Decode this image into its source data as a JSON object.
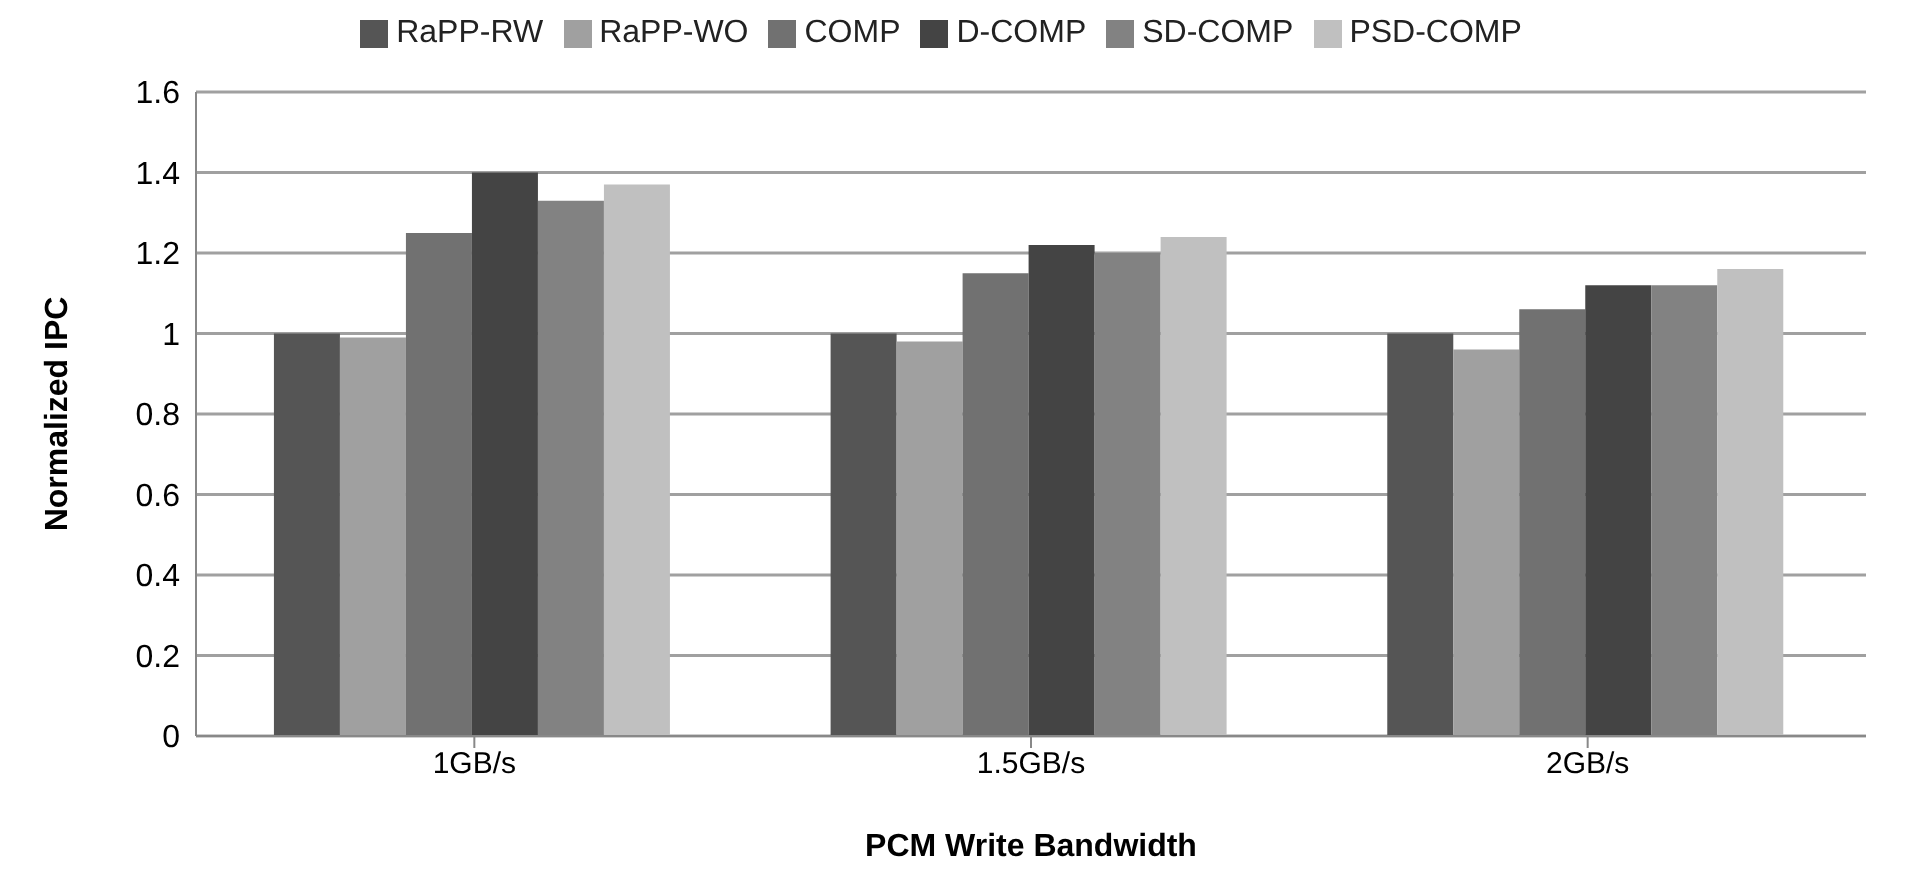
{
  "chart_data": {
    "type": "bar",
    "xlabel": "PCM Write Bandwidth",
    "ylabel": "Normalized IPC",
    "categories": [
      "1GB/s",
      "1.5GB/s",
      "2GB/s"
    ],
    "series": [
      {
        "name": "RaPP-RW",
        "color": "#555555",
        "values": [
          1.0,
          1.0,
          1.0
        ]
      },
      {
        "name": "RaPP-WO",
        "color": "#a0a0a0",
        "values": [
          0.99,
          0.98,
          0.96
        ]
      },
      {
        "name": "COMP",
        "color": "#717171",
        "values": [
          1.25,
          1.15,
          1.06
        ]
      },
      {
        "name": "D-COMP",
        "color": "#444444",
        "values": [
          1.4,
          1.22,
          1.12
        ]
      },
      {
        "name": "SD-COMP",
        "color": "#828282",
        "values": [
          1.33,
          1.2,
          1.12
        ]
      },
      {
        "name": "PSD-COMP",
        "color": "#c0c0c0",
        "values": [
          1.37,
          1.24,
          1.16
        ]
      }
    ],
    "ylim": [
      0,
      1.6
    ],
    "yticks": [
      0,
      0.2,
      0.4,
      0.6,
      0.8,
      1,
      1.2,
      1.4,
      1.6
    ],
    "grid": "y",
    "legend": "top"
  }
}
